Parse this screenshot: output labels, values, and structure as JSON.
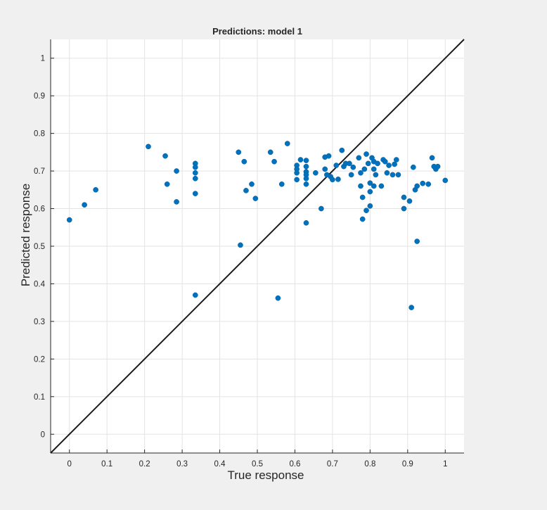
{
  "chart_data": {
    "type": "scatter",
    "title": "Predictions: model 1",
    "xlabel": "True response",
    "ylabel": "Predicted response",
    "xlim": [
      -0.05,
      1.05
    ],
    "ylim": [
      -0.05,
      1.05
    ],
    "xticks": [
      "0",
      "0.1",
      "0.2",
      "0.3",
      "0.4",
      "0.5",
      "0.6",
      "0.7",
      "0.8",
      "0.9",
      "1"
    ],
    "yticks": [
      "0",
      "0.1",
      "0.2",
      "0.3",
      "0.4",
      "0.5",
      "0.6",
      "0.7",
      "0.8",
      "0.9",
      "1"
    ],
    "grid": true,
    "reference_line": {
      "slope": 1,
      "intercept": 0
    },
    "colors": {
      "points": "#0072bd",
      "line": "#1a1a1a",
      "background": "#f0f0f0",
      "plot_area": "#ffffff"
    },
    "series": [
      {
        "points": [
          [
            0.0,
            0.57
          ],
          [
            0.04,
            0.61
          ],
          [
            0.07,
            0.65
          ],
          [
            0.21,
            0.765
          ],
          [
            0.255,
            0.74
          ],
          [
            0.26,
            0.665
          ],
          [
            0.285,
            0.7
          ],
          [
            0.285,
            0.618
          ],
          [
            0.335,
            0.72
          ],
          [
            0.335,
            0.71
          ],
          [
            0.335,
            0.695
          ],
          [
            0.335,
            0.68
          ],
          [
            0.335,
            0.64
          ],
          [
            0.335,
            0.37
          ],
          [
            0.45,
            0.75
          ],
          [
            0.455,
            0.503
          ],
          [
            0.465,
            0.725
          ],
          [
            0.47,
            0.648
          ],
          [
            0.485,
            0.665
          ],
          [
            0.495,
            0.627
          ],
          [
            0.535,
            0.75
          ],
          [
            0.545,
            0.725
          ],
          [
            0.555,
            0.362
          ],
          [
            0.565,
            0.665
          ],
          [
            0.58,
            0.773
          ],
          [
            0.605,
            0.715
          ],
          [
            0.605,
            0.705
          ],
          [
            0.605,
            0.695
          ],
          [
            0.605,
            0.677
          ],
          [
            0.615,
            0.73
          ],
          [
            0.63,
            0.728
          ],
          [
            0.63,
            0.712
          ],
          [
            0.63,
            0.698
          ],
          [
            0.63,
            0.69
          ],
          [
            0.63,
            0.68
          ],
          [
            0.63,
            0.665
          ],
          [
            0.63,
            0.562
          ],
          [
            0.655,
            0.695
          ],
          [
            0.67,
            0.6
          ],
          [
            0.68,
            0.737
          ],
          [
            0.68,
            0.705
          ],
          [
            0.685,
            0.69
          ],
          [
            0.69,
            0.74
          ],
          [
            0.695,
            0.685
          ],
          [
            0.7,
            0.677
          ],
          [
            0.71,
            0.715
          ],
          [
            0.715,
            0.678
          ],
          [
            0.725,
            0.755
          ],
          [
            0.73,
            0.712
          ],
          [
            0.735,
            0.72
          ],
          [
            0.745,
            0.72
          ],
          [
            0.75,
            0.69
          ],
          [
            0.755,
            0.71
          ],
          [
            0.77,
            0.735
          ],
          [
            0.775,
            0.695
          ],
          [
            0.775,
            0.66
          ],
          [
            0.78,
            0.63
          ],
          [
            0.78,
            0.572
          ],
          [
            0.785,
            0.705
          ],
          [
            0.79,
            0.745
          ],
          [
            0.79,
            0.595
          ],
          [
            0.795,
            0.72
          ],
          [
            0.8,
            0.668
          ],
          [
            0.8,
            0.645
          ],
          [
            0.8,
            0.607
          ],
          [
            0.805,
            0.735
          ],
          [
            0.81,
            0.725
          ],
          [
            0.81,
            0.705
          ],
          [
            0.81,
            0.66
          ],
          [
            0.815,
            0.69
          ],
          [
            0.82,
            0.72
          ],
          [
            0.83,
            0.66
          ],
          [
            0.835,
            0.73
          ],
          [
            0.84,
            0.725
          ],
          [
            0.845,
            0.695
          ],
          [
            0.85,
            0.715
          ],
          [
            0.86,
            0.69
          ],
          [
            0.865,
            0.718
          ],
          [
            0.87,
            0.73
          ],
          [
            0.875,
            0.69
          ],
          [
            0.89,
            0.63
          ],
          [
            0.89,
            0.6
          ],
          [
            0.905,
            0.62
          ],
          [
            0.91,
            0.337
          ],
          [
            0.915,
            0.71
          ],
          [
            0.92,
            0.65
          ],
          [
            0.925,
            0.513
          ],
          [
            0.925,
            0.66
          ],
          [
            0.94,
            0.667
          ],
          [
            0.955,
            0.665
          ],
          [
            0.965,
            0.735
          ],
          [
            0.97,
            0.712
          ],
          [
            0.975,
            0.705
          ],
          [
            0.98,
            0.712
          ],
          [
            1.0,
            0.675
          ]
        ]
      }
    ]
  }
}
